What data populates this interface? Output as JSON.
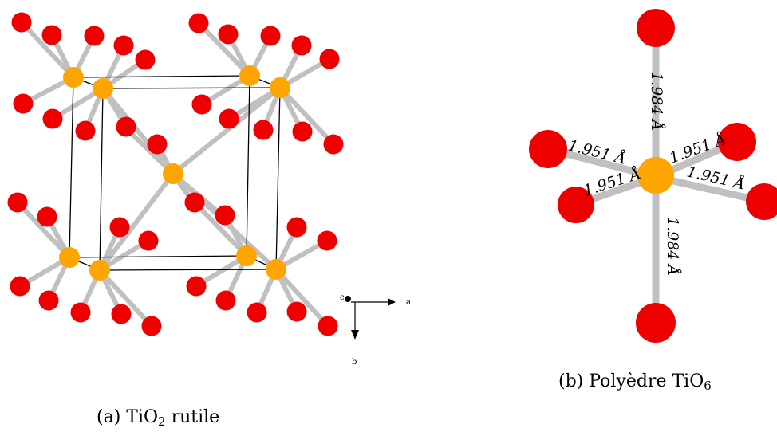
{
  "panel_a": {
    "caption": {
      "prefix": "(a) TiO",
      "subscript": "2",
      "suffix": " rutile"
    },
    "axes": {
      "c": "c",
      "a": "a",
      "b": "b"
    }
  },
  "panel_b": {
    "caption": {
      "prefix": "(b) Polyèdre TiO",
      "subscript": "6"
    },
    "bond_labels": {
      "top": "1.984 Å",
      "bottom": "1.984 Å",
      "upper_left": "1.951 Å",
      "lower_left": "1.951 Å",
      "upper_right": "1.951 Å",
      "lower_right": "1.951 Å"
    }
  },
  "colors": {
    "titanium": "#ffa500",
    "oxygen": "#ee0000",
    "bond": "#c0c0c0",
    "cell_edge": "#000000"
  }
}
